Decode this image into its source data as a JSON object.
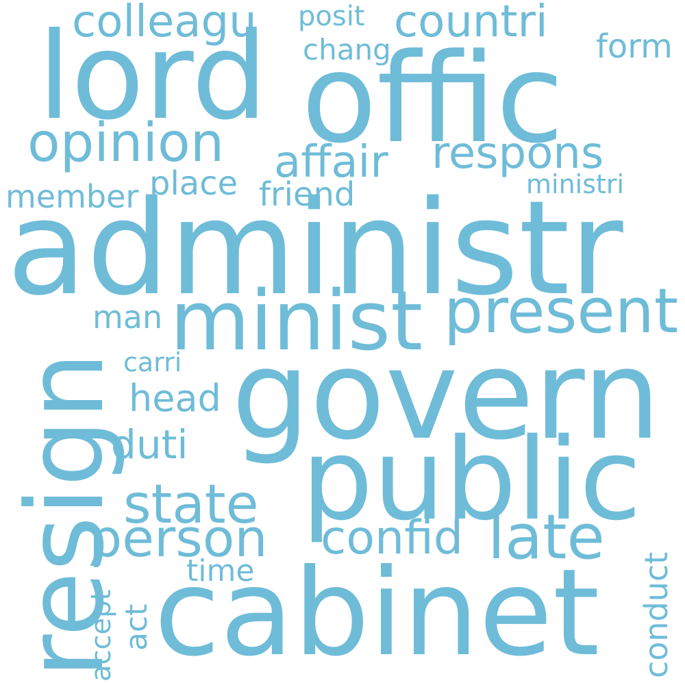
{
  "color": "#6fbcd8",
  "words": {
    "administr": "administr",
    "govern": "govern",
    "offic": "offic",
    "lord": "lord",
    "public": "public",
    "cabinet": "cabinet",
    "resign": "resign",
    "minist": "minist",
    "present": "present",
    "opinion": "opinion",
    "respons": "respons",
    "affair": "affair",
    "person": "person",
    "state": "state",
    "late": "late",
    "confid": "confid",
    "colleagu": "colleagu",
    "countri": "countri",
    "posit": "posit",
    "chang": "chang",
    "form": "form",
    "member": "member",
    "place": "place",
    "friend": "friend",
    "ministri": "ministri",
    "man": "man",
    "head": "head",
    "duti": "duti",
    "carri": "carri",
    "time": "time",
    "conduct": "conduct",
    "accept": "accept",
    "act": "act"
  }
}
